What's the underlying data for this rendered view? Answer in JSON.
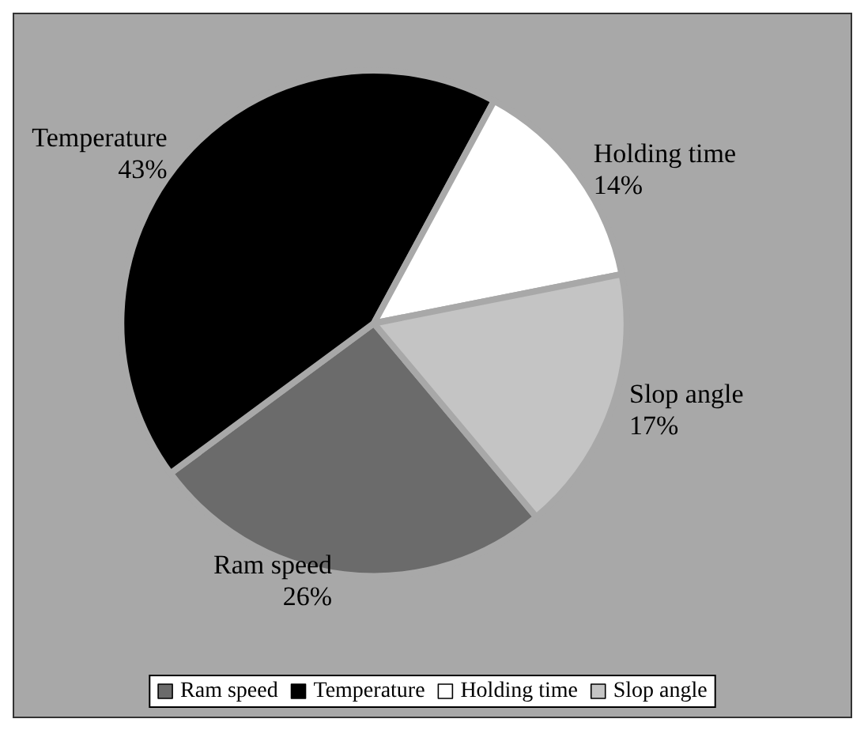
{
  "chart_data": {
    "type": "pie",
    "categories": [
      "Ram speed",
      "Temperature",
      "Holding time",
      "Slop angle"
    ],
    "values": [
      26,
      43,
      14,
      17
    ],
    "value_labels": [
      "26%",
      "43%",
      "14%",
      "17%"
    ],
    "colors": [
      "#6b6b6b",
      "#000000",
      "#ffffff",
      "#c4c4c4"
    ],
    "legend": "bottom"
  }
}
